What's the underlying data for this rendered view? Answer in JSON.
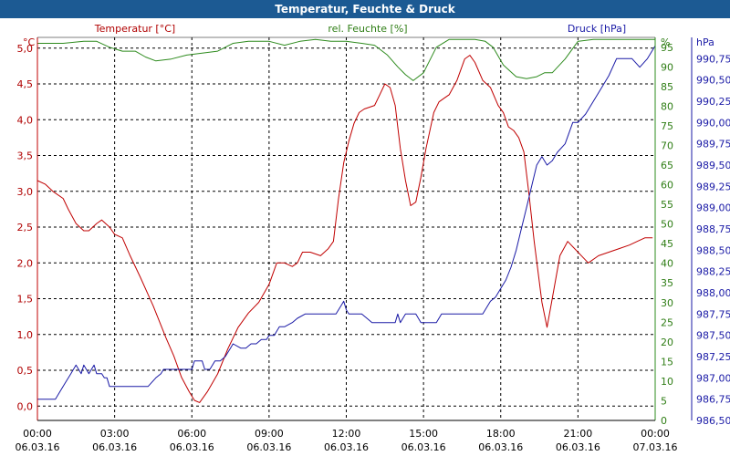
{
  "chart_data": {
    "type": "line",
    "title": "Temperatur, Feuchte & Druck",
    "x_ticks": [
      {
        "time": "00:00",
        "date": "06.03.16"
      },
      {
        "time": "03:00",
        "date": "06.03.16"
      },
      {
        "time": "06:00",
        "date": "06.03.16"
      },
      {
        "time": "09:00",
        "date": "06.03.16"
      },
      {
        "time": "12:00",
        "date": "06.03.16"
      },
      {
        "time": "15:00",
        "date": "06.03.16"
      },
      {
        "time": "18:00",
        "date": "06.03.16"
      },
      {
        "time": "21:00",
        "date": "06.03.16"
      },
      {
        "time": "00:00",
        "date": "07.03.16"
      }
    ],
    "xlim_hours": [
      0,
      24
    ],
    "grid": true,
    "axes": {
      "temperature": {
        "label": "Temperatur [°C]",
        "unit": "°C",
        "side": "left",
        "ylim": [
          -0.2,
          5.15
        ],
        "ticks": [
          "0,0",
          "0,5",
          "1,0",
          "1,5",
          "2,0",
          "2,5",
          "3,0",
          "3,5",
          "4,0",
          "4,5",
          "5,0"
        ],
        "tick_values": [
          0,
          0.5,
          1,
          1.5,
          2,
          2.5,
          3,
          3.5,
          4,
          4.5,
          5
        ],
        "color": "#c00000"
      },
      "humidity": {
        "label": "rel. Feuchte [%]",
        "unit": "%",
        "side": "right",
        "ylim": [
          0,
          97.5
        ],
        "ticks": [
          "0",
          "5",
          "10",
          "15",
          "20",
          "25",
          "30",
          "35",
          "40",
          "45",
          "50",
          "55",
          "60",
          "65",
          "70",
          "75",
          "80",
          "85",
          "90",
          "95"
        ],
        "tick_values": [
          0,
          5,
          10,
          15,
          20,
          25,
          30,
          35,
          40,
          45,
          50,
          55,
          60,
          65,
          70,
          75,
          80,
          85,
          90,
          95
        ],
        "color": "#2e8b1e"
      },
      "pressure": {
        "label": "Druck [hPa]",
        "unit": "hPa",
        "side": "right",
        "ylim": [
          986.5,
          991.0
        ],
        "ticks": [
          "986,50",
          "986,75",
          "987,00",
          "987,25",
          "987,50",
          "987,75",
          "988,00",
          "988,25",
          "988,50",
          "988,75",
          "989,00",
          "989,25",
          "989,50",
          "989,75",
          "990,00",
          "990,25",
          "990,50",
          "990,75"
        ],
        "tick_values": [
          986.5,
          986.75,
          987,
          987.25,
          987.5,
          987.75,
          988,
          988.25,
          988.5,
          988.75,
          989,
          989.25,
          989.5,
          989.75,
          990,
          990.25,
          990.5,
          990.75
        ],
        "color": "#1a1aa6"
      }
    },
    "series": [
      {
        "name": "Temperatur [°C]",
        "axis": "temperature",
        "color": "#c00000",
        "x": [
          0,
          0.3,
          0.6,
          1,
          1.2,
          1.5,
          1.8,
          2,
          2.3,
          2.5,
          2.8,
          3,
          3.3,
          3.6,
          4,
          4.5,
          5,
          5.3,
          5.6,
          5.9,
          6.1,
          6.3,
          6.6,
          7,
          7.4,
          7.8,
          8.2,
          8.6,
          9,
          9.3,
          9.6,
          9.9,
          10.1,
          10.3,
          10.6,
          11,
          11.3,
          11.5,
          11.7,
          11.9,
          12.1,
          12.3,
          12.5,
          12.7,
          13.1,
          13.3,
          13.5,
          13.7,
          13.9,
          14.1,
          14.3,
          14.5,
          14.7,
          14.9,
          15.1,
          15.4,
          15.6,
          15.8,
          16,
          16.3,
          16.6,
          16.8,
          17,
          17.3,
          17.6,
          17.9,
          18.1,
          18.3,
          18.5,
          18.7,
          18.9,
          19.1,
          19.3,
          19.6,
          19.8,
          20,
          20.3,
          20.6,
          21,
          21.4,
          21.8,
          22.2,
          22.6,
          23,
          23.3,
          23.6,
          23.9
        ],
        "values": [
          3.15,
          3.1,
          3,
          2.9,
          2.75,
          2.55,
          2.45,
          2.45,
          2.55,
          2.6,
          2.5,
          2.4,
          2.35,
          2.1,
          1.8,
          1.4,
          0.95,
          0.7,
          0.4,
          0.2,
          0.08,
          0.05,
          0.2,
          0.45,
          0.8,
          1.1,
          1.3,
          1.45,
          1.7,
          2,
          2,
          1.95,
          2,
          2.15,
          2.15,
          2.1,
          2.2,
          2.3,
          2.9,
          3.4,
          3.7,
          3.95,
          4.1,
          4.15,
          4.2,
          4.35,
          4.5,
          4.45,
          4.2,
          3.6,
          3.15,
          2.8,
          2.85,
          3.2,
          3.6,
          4.1,
          4.25,
          4.3,
          4.35,
          4.55,
          4.85,
          4.9,
          4.8,
          4.55,
          4.45,
          4.2,
          4.1,
          3.9,
          3.85,
          3.75,
          3.55,
          2.95,
          2.3,
          1.45,
          1.1,
          1.5,
          2.1,
          2.3,
          2.15,
          2,
          2.1,
          2.15,
          2.2,
          2.25,
          2.3,
          2.35,
          2.35
        ]
      },
      {
        "name": "rel. Feuchte [%]",
        "axis": "humidity",
        "color": "#2e8b1e",
        "x": [
          0,
          1,
          1.8,
          2.3,
          2.8,
          3.3,
          3.8,
          4.2,
          4.6,
          5.2,
          5.8,
          6.4,
          7,
          7.6,
          8.2,
          9,
          9.6,
          10.2,
          10.8,
          11.4,
          12,
          12.6,
          13.1,
          13.6,
          14,
          14.3,
          14.6,
          15,
          15.5,
          16,
          16.5,
          17,
          17.4,
          17.7,
          18.1,
          18.6,
          19,
          19.4,
          19.7,
          20,
          20.5,
          21,
          21.6,
          22.2,
          22.8,
          23.4,
          24
        ],
        "values": [
          96,
          96,
          96.5,
          96.5,
          95,
          94,
          94,
          92.5,
          91.5,
          92,
          93,
          93.5,
          94,
          96,
          96.5,
          96.5,
          95.5,
          96.5,
          97,
          96.5,
          96.5,
          96,
          95.5,
          93,
          90,
          88,
          86.5,
          88.5,
          95,
          97,
          97,
          97,
          96.5,
          95,
          90.5,
          87.5,
          87,
          87.5,
          88.5,
          88.5,
          92,
          96.5,
          97,
          97,
          97,
          97,
          97
        ]
      },
      {
        "name": "Druck [hPa]",
        "axis": "pressure",
        "color": "#1a1aa6",
        "x": [
          0,
          0.7,
          0.9,
          1.1,
          1.3,
          1.5,
          1.6,
          1.7,
          1.8,
          1.9,
          2,
          2.1,
          2.2,
          2.3,
          2.4,
          2.5,
          2.6,
          2.7,
          2.8,
          3.0,
          3.1,
          3.3,
          3.5,
          3.7,
          4.0,
          4.3,
          4.6,
          4.8,
          4.9,
          5.2,
          5.5,
          5.8,
          6.0,
          6.1,
          6.2,
          6.4,
          6.5,
          6.7,
          6.9,
          7.1,
          7.3,
          7.5,
          7.6,
          7.9,
          8.1,
          8.3,
          8.5,
          8.7,
          8.9,
          9.0,
          9.2,
          9.4,
          9.6,
          9.9,
          10.1,
          10.4,
          10.7,
          11.0,
          11.3,
          11.6,
          11.8,
          11.9,
          12.0,
          12.1,
          12.2,
          12.4,
          12.6,
          12.8,
          13.0,
          13.3,
          13.6,
          13.9,
          14.0,
          14.1,
          14.3,
          14.5,
          14.7,
          14.9,
          15.1,
          15.3,
          15.5,
          15.7,
          15.9,
          16.1,
          16.5,
          16.9,
          17.3,
          17.6,
          17.8,
          18.0,
          18.2,
          18.4,
          18.6,
          18.8,
          19.0,
          19.2,
          19.4,
          19.6,
          19.8,
          20.0,
          20.2,
          20.5,
          20.8,
          21.0,
          21.3,
          21.6,
          21.9,
          22.2,
          22.5,
          22.8,
          23.1,
          23.4,
          23.7,
          24.0
        ],
        "values": [
          986.75,
          986.75,
          986.85,
          986.95,
          987.05,
          987.15,
          987.1,
          987.05,
          987.15,
          987.1,
          987.05,
          987.1,
          987.15,
          987.05,
          987.05,
          987.05,
          987.0,
          987.0,
          986.9,
          986.9,
          986.9,
          986.9,
          986.9,
          986.9,
          986.9,
          986.9,
          987.0,
          987.05,
          987.1,
          987.1,
          987.1,
          987.1,
          987.1,
          987.2,
          987.2,
          987.2,
          987.1,
          987.1,
          987.2,
          987.2,
          987.25,
          987.35,
          987.4,
          987.35,
          987.35,
          987.4,
          987.4,
          987.45,
          987.45,
          987.5,
          987.5,
          987.6,
          987.6,
          987.65,
          987.7,
          987.75,
          987.75,
          987.75,
          987.75,
          987.75,
          987.85,
          987.9,
          987.8,
          987.75,
          987.75,
          987.75,
          987.75,
          987.7,
          987.65,
          987.65,
          987.65,
          987.65,
          987.75,
          987.65,
          987.75,
          987.75,
          987.75,
          987.65,
          987.65,
          987.65,
          987.65,
          987.75,
          987.75,
          987.75,
          987.75,
          987.75,
          987.75,
          987.9,
          987.95,
          988.05,
          988.15,
          988.3,
          988.5,
          988.75,
          989.0,
          989.25,
          989.5,
          989.6,
          989.5,
          989.55,
          989.65,
          989.75,
          990.0,
          990.0,
          990.1,
          990.25,
          990.4,
          990.55,
          990.75,
          990.75,
          990.75,
          990.65,
          990.75,
          990.9
        ]
      }
    ]
  }
}
